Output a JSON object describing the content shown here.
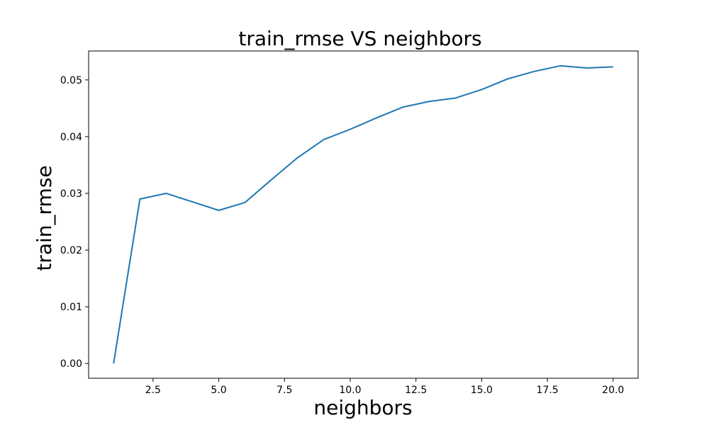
{
  "chart_data": {
    "type": "line",
    "title": "train_rmse VS neighbors",
    "xlabel": "neighbors",
    "ylabel": "train_rmse",
    "xlim": [
      0.05,
      20.95
    ],
    "ylim": [
      -0.0026,
      0.0551
    ],
    "x_ticks": [
      2.5,
      5.0,
      7.5,
      10.0,
      12.5,
      15.0,
      17.5,
      20.0
    ],
    "x_tick_labels": [
      "2.5",
      "5.0",
      "7.5",
      "10.0",
      "12.5",
      "15.0",
      "17.5",
      "20.0"
    ],
    "y_ticks": [
      0.0,
      0.01,
      0.02,
      0.03,
      0.04,
      0.05
    ],
    "y_tick_labels": [
      "0.00",
      "0.01",
      "0.02",
      "0.03",
      "0.04",
      "0.05"
    ],
    "grid": false,
    "series": [
      {
        "color": "#1f77b4",
        "x": [
          1,
          2,
          3,
          4,
          5,
          6,
          7,
          8,
          9,
          10,
          11,
          12,
          13,
          14,
          15,
          16,
          17,
          18,
          19,
          20
        ],
        "values": [
          0.0,
          0.029,
          0.03,
          0.0285,
          0.027,
          0.0284,
          0.0324,
          0.0363,
          0.0395,
          0.0413,
          0.0433,
          0.0452,
          0.0462,
          0.0468,
          0.0483,
          0.0502,
          0.0515,
          0.0525,
          0.0521,
          0.0523
        ]
      }
    ]
  }
}
